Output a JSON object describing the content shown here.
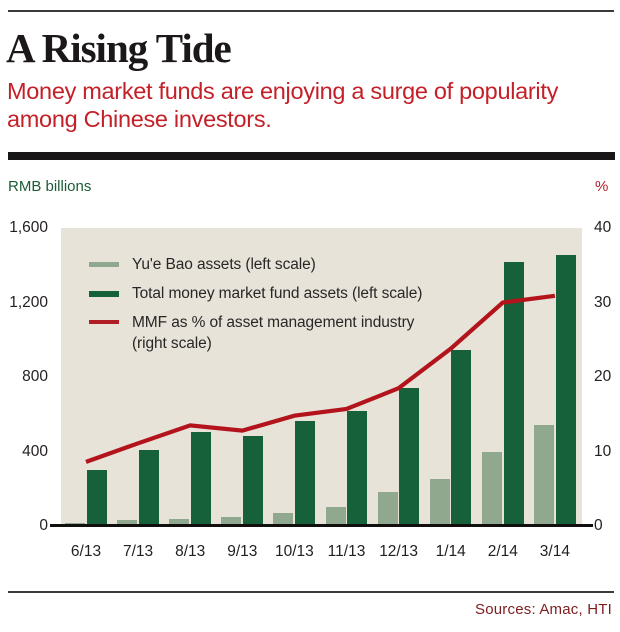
{
  "header": {
    "title": "A Rising Tide",
    "subtitle_lines": [
      "Money market funds are enjoying a surge of popularity",
      "among Chinese investors."
    ]
  },
  "axes": {
    "left_unit_label": "RMB billions",
    "right_unit_label": "%",
    "left_ticks": [
      "0",
      "400",
      "800",
      "1,200",
      "1,600"
    ],
    "right_ticks": [
      "0",
      "10",
      "20",
      "30",
      "40"
    ]
  },
  "legend": {
    "items": [
      {
        "swatch": "bar",
        "color": "#8fa88e",
        "swatch_height": 5,
        "lines": [
          "Yu'e Bao assets (left scale)"
        ]
      },
      {
        "swatch": "bar",
        "color": "#17613a",
        "swatch_height": 5.5,
        "lines": [
          "Total money market fund assets (left scale)"
        ]
      },
      {
        "swatch": "line",
        "color": "#b01d23",
        "swatch_height": 4,
        "lines": [
          "MMF as % of asset management industry",
          "(right scale)"
        ]
      }
    ]
  },
  "chart_data": {
    "type": "bar",
    "title": "A Rising Tide",
    "subtitle": "Money market funds are enjoying a surge of popularity among Chinese investors.",
    "categories": [
      "6/13",
      "7/13",
      "8/13",
      "9/13",
      "10/13",
      "11/13",
      "12/13",
      "1/14",
      "2/14",
      "3/14"
    ],
    "series": [
      {
        "name": "Yu'e Bao assets (left scale)",
        "type": "bar",
        "axis": "left",
        "color": "#8fa88e",
        "values": [
          15,
          30,
          40,
          50,
          68,
          100,
          182,
          250,
          398,
          540
        ]
      },
      {
        "name": "Total money market fund assets (left scale)",
        "type": "bar",
        "axis": "left",
        "color": "#17613a",
        "values": [
          300,
          410,
          505,
          485,
          565,
          620,
          742,
          945,
          1420,
          1455
        ]
      },
      {
        "name": "MMF as % of asset management industry (right scale)",
        "type": "line",
        "axis": "right",
        "color": "#b3141c",
        "values": [
          8.6,
          11.1,
          13.5,
          12.8,
          14.8,
          15.7,
          18.5,
          23.8,
          30.0,
          30.9
        ]
      }
    ],
    "left_axis": {
      "label": "RMB billions",
      "range": [
        0,
        1600
      ],
      "ticks": [
        0,
        400,
        800,
        1200,
        1600
      ]
    },
    "right_axis": {
      "label": "%",
      "range": [
        0,
        40
      ],
      "ticks": [
        0,
        10,
        20,
        30,
        40
      ]
    },
    "grid": false,
    "legend_position": "top-left-inside",
    "plot_background": "#e7e3d8"
  },
  "footer": {
    "sources": "Sources: Amac, HTI"
  },
  "colors": {
    "plot_background": "#e7e3d8",
    "bar_light": "#8fa88e",
    "bar_dark": "#17613a",
    "line_red": "#b3141c",
    "subtitle_red": "#c42028",
    "left_unit_green": "#1b5c36",
    "sources_maroon": "#7d1d20",
    "rule_black": "#191617"
  }
}
